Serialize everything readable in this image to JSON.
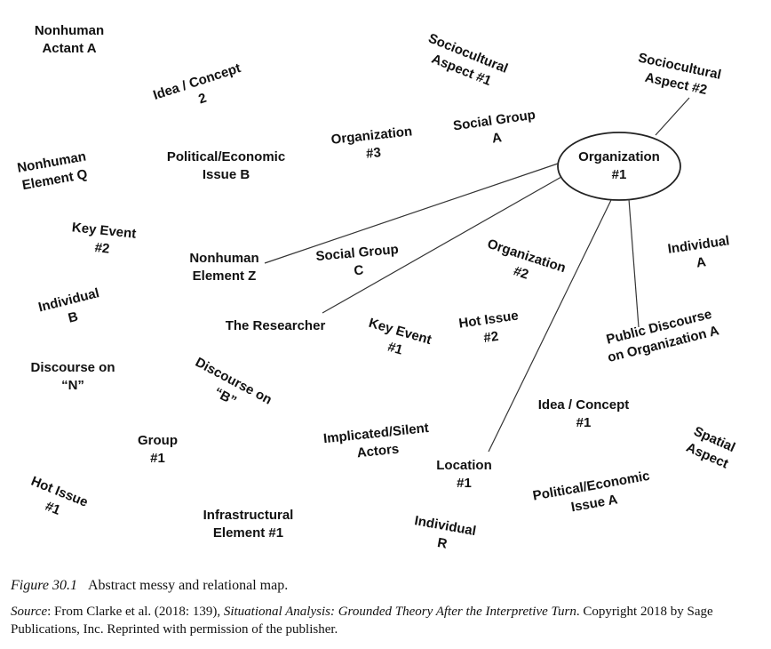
{
  "diagram": {
    "center": {
      "line1": "Organization",
      "line2": "#1"
    },
    "nodes": [
      {
        "id": "nonhuman-actant-a",
        "lines": [
          "Nonhuman",
          "Actant A"
        ]
      },
      {
        "id": "idea-concept-2",
        "lines": [
          "Idea / Concept",
          "2"
        ]
      },
      {
        "id": "sociocultural-aspect-1",
        "lines": [
          "Sociocultural",
          "Aspect #1"
        ]
      },
      {
        "id": "sociocultural-aspect-2",
        "lines": [
          "Sociocultural",
          "Aspect #2"
        ]
      },
      {
        "id": "social-group-a",
        "lines": [
          "Social Group",
          "A"
        ]
      },
      {
        "id": "organization-3",
        "lines": [
          "Organization",
          "#3"
        ]
      },
      {
        "id": "political-economic-issue-b",
        "lines": [
          "Political/Economic",
          "Issue B"
        ]
      },
      {
        "id": "nonhuman-element-q",
        "lines": [
          "Nonhuman",
          "Element Q"
        ]
      },
      {
        "id": "key-event-2",
        "lines": [
          "Key Event",
          "#2"
        ]
      },
      {
        "id": "nonhuman-element-z",
        "lines": [
          "Nonhuman",
          "Element Z"
        ]
      },
      {
        "id": "social-group-c",
        "lines": [
          "Social Group",
          "C"
        ]
      },
      {
        "id": "organization-2",
        "lines": [
          "Organization",
          "#2"
        ]
      },
      {
        "id": "individual-a",
        "lines": [
          "Individual",
          "A"
        ]
      },
      {
        "id": "individual-b",
        "lines": [
          "Individual",
          "B"
        ]
      },
      {
        "id": "the-researcher",
        "lines": [
          "The Researcher"
        ]
      },
      {
        "id": "key-event-1",
        "lines": [
          "Key Event",
          "#1"
        ]
      },
      {
        "id": "hot-issue-2",
        "lines": [
          "Hot Issue",
          "#2"
        ]
      },
      {
        "id": "public-discourse-org-a",
        "lines": [
          "Public Discourse",
          "on Organization A"
        ]
      },
      {
        "id": "discourse-on-n",
        "lines": [
          "Discourse on",
          "“N”"
        ]
      },
      {
        "id": "discourse-on-b",
        "lines": [
          "Discourse on",
          "“B”"
        ]
      },
      {
        "id": "idea-concept-1",
        "lines": [
          "Idea / Concept",
          "#1"
        ]
      },
      {
        "id": "group-1",
        "lines": [
          "Group",
          "#1"
        ]
      },
      {
        "id": "implicated-silent-actors",
        "lines": [
          "Implicated/Silent",
          "Actors"
        ]
      },
      {
        "id": "spatial-aspect",
        "lines": [
          "Spatial",
          "Aspect"
        ]
      },
      {
        "id": "hot-issue-1",
        "lines": [
          "Hot Issue",
          "#1"
        ]
      },
      {
        "id": "location-1",
        "lines": [
          "Location",
          "#1"
        ]
      },
      {
        "id": "political-economic-issue-a",
        "lines": [
          "Political/Economic",
          "Issue A"
        ]
      },
      {
        "id": "infrastructural-element-1",
        "lines": [
          "Infrastructural",
          "Element #1"
        ]
      },
      {
        "id": "individual-r",
        "lines": [
          "Individual",
          "R"
        ]
      }
    ]
  },
  "caption": {
    "figure_number": "Figure 30.1",
    "figure_title": "Abstract messy and relational map.",
    "source_label": "Source",
    "source_text_1": ": From Clarke et al. (2018: 139), ",
    "source_title": "Situational Analysis: Grounded Theory After the Interpretive Turn",
    "source_text_2": ". Copyright 2018 by Sage Publications, Inc. Reprinted with permission of the publisher."
  }
}
